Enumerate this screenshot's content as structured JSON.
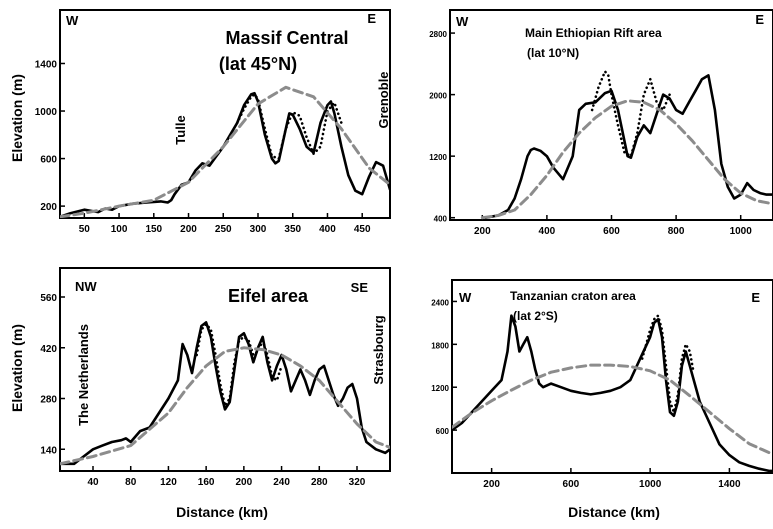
{
  "figure": {
    "ylabel": "Elevation   (m)",
    "xlabel": "Distance  (km)"
  },
  "chart_data": [
    {
      "type": "line",
      "title": "Massif Central",
      "subtitle": "(lat 45°N)",
      "corner_left": "W",
      "corner_right": "E",
      "annotations": [
        {
          "text": "Tulle",
          "x": 185
        },
        {
          "text": "Grenoble",
          "x": 470
        }
      ],
      "xlim": [
        15,
        490
      ],
      "ylim": [
        100,
        1850
      ],
      "xticks": [
        50,
        100,
        150,
        200,
        250,
        300,
        350,
        400,
        450
      ],
      "yticks": [
        200,
        600,
        1000,
        1400
      ],
      "series": [
        {
          "style": "solid",
          "x": [
            15,
            30,
            50,
            70,
            80,
            90,
            100,
            120,
            140,
            160,
            170,
            175,
            180,
            190,
            200,
            210,
            220,
            230,
            240,
            250,
            260,
            270,
            280,
            290,
            295,
            300,
            310,
            320,
            325,
            330,
            340,
            345,
            350,
            360,
            370,
            380,
            390,
            400,
            405,
            410,
            420,
            430,
            440,
            450,
            460,
            470,
            480,
            490
          ],
          "y": [
            110,
            140,
            170,
            150,
            180,
            170,
            200,
            220,
            230,
            240,
            230,
            250,
            300,
            380,
            400,
            500,
            560,
            540,
            620,
            700,
            800,
            900,
            1050,
            1140,
            1150,
            1080,
            800,
            600,
            560,
            580,
            850,
            980,
            970,
            850,
            700,
            650,
            900,
            1050,
            1080,
            980,
            700,
            460,
            330,
            300,
            450,
            570,
            540,
            340
          ]
        },
        {
          "style": "dotted",
          "x": [
            270,
            280,
            290,
            295,
            300,
            310,
            320,
            330,
            340,
            350,
            360,
            370,
            380,
            390,
            400,
            410,
            420
          ],
          "y": [
            900,
            1020,
            1120,
            1140,
            1100,
            850,
            620,
            600,
            850,
            990,
            960,
            780,
            640,
            700,
            1000,
            1070,
            900
          ]
        },
        {
          "style": "dashed",
          "x": [
            15,
            50,
            100,
            150,
            200,
            250,
            300,
            340,
            380,
            420,
            460,
            490
          ],
          "y": [
            110,
            140,
            200,
            250,
            400,
            700,
            1060,
            1200,
            1120,
            850,
            520,
            380
          ]
        }
      ]
    },
    {
      "type": "line",
      "title": "Main Ethiopian Rift area",
      "subtitle": "(lat 10°N)",
      "corner_left": "W",
      "corner_right": "E",
      "annotations": [],
      "xlim": [
        100,
        1100
      ],
      "ylim": [
        370,
        3100
      ],
      "xticks": [
        200,
        400,
        600,
        800,
        1000
      ],
      "yticks": [
        400,
        1200,
        2000,
        2800
      ],
      "series": [
        {
          "style": "solid",
          "x": [
            210,
            250,
            280,
            300,
            320,
            340,
            350,
            360,
            380,
            400,
            420,
            450,
            480,
            500,
            520,
            550,
            580,
            600,
            620,
            640,
            650,
            660,
            680,
            700,
            720,
            740,
            760,
            780,
            800,
            820,
            840,
            860,
            880,
            900,
            920,
            940,
            960,
            980,
            1000,
            1020,
            1040,
            1060,
            1080,
            1100
          ],
          "y": [
            400,
            430,
            500,
            650,
            900,
            1200,
            1280,
            1300,
            1270,
            1200,
            1050,
            900,
            1200,
            1800,
            1880,
            1900,
            2020,
            2050,
            1800,
            1400,
            1200,
            1180,
            1450,
            1600,
            1500,
            1750,
            2000,
            1950,
            1800,
            1750,
            1900,
            2050,
            2200,
            2250,
            1800,
            1100,
            800,
            650,
            700,
            850,
            760,
            720,
            700,
            700
          ]
        },
        {
          "style": "dotted",
          "x": [
            540,
            560,
            580,
            590,
            600,
            610,
            620,
            640,
            660,
            680,
            700,
            720,
            740,
            760,
            780
          ],
          "y": [
            1800,
            2100,
            2300,
            2250,
            2000,
            1800,
            1600,
            1250,
            1200,
            1500,
            2000,
            2200,
            1900,
            1800,
            2000
          ]
        },
        {
          "style": "dashed",
          "x": [
            200,
            250,
            300,
            350,
            400,
            450,
            500,
            550,
            600,
            650,
            700,
            750,
            800,
            850,
            900,
            950,
            1000,
            1050,
            1100
          ],
          "y": [
            400,
            430,
            500,
            700,
            950,
            1250,
            1500,
            1700,
            1850,
            1920,
            1900,
            1800,
            1620,
            1400,
            1150,
            900,
            720,
            620,
            580
          ]
        }
      ]
    },
    {
      "type": "line",
      "title": "Eifel area",
      "subtitle": "",
      "corner_left": "NW",
      "corner_right": "SE",
      "annotations": [
        {
          "text": "The Netherlands",
          "x": 20
        },
        {
          "text": "Strasbourg",
          "x": 340
        }
      ],
      "xlim": [
        5,
        355
      ],
      "ylim": [
        80,
        640
      ],
      "xticks": [
        40,
        80,
        120,
        160,
        200,
        240,
        280,
        320
      ],
      "yticks": [
        140,
        280,
        420,
        560
      ],
      "series": [
        {
          "style": "solid",
          "x": [
            5,
            20,
            30,
            40,
            50,
            60,
            70,
            75,
            80,
            90,
            100,
            110,
            120,
            130,
            135,
            140,
            145,
            150,
            155,
            160,
            165,
            170,
            175,
            180,
            185,
            190,
            195,
            200,
            205,
            210,
            215,
            220,
            225,
            230,
            235,
            240,
            245,
            250,
            255,
            260,
            265,
            270,
            275,
            280,
            285,
            290,
            295,
            300,
            305,
            310,
            315,
            320,
            325,
            330,
            340,
            350,
            355
          ],
          "y": [
            100,
            100,
            120,
            140,
            150,
            160,
            165,
            170,
            160,
            190,
            200,
            240,
            280,
            330,
            430,
            400,
            350,
            420,
            480,
            490,
            450,
            370,
            300,
            250,
            270,
            360,
            450,
            460,
            430,
            380,
            420,
            450,
            380,
            330,
            370,
            400,
            360,
            300,
            330,
            360,
            330,
            290,
            330,
            360,
            370,
            330,
            290,
            260,
            280,
            310,
            320,
            280,
            200,
            160,
            140,
            130,
            140
          ]
        },
        {
          "style": "dotted",
          "x": [
            150,
            155,
            160,
            165,
            170,
            175,
            180,
            185,
            190,
            195,
            200,
            205,
            210,
            215,
            220,
            225,
            230,
            235,
            240
          ],
          "y": [
            400,
            470,
            485,
            470,
            400,
            320,
            260,
            280,
            380,
            440,
            450,
            440,
            400,
            410,
            440,
            400,
            340,
            330,
            370
          ]
        },
        {
          "style": "dashed",
          "x": [
            5,
            40,
            80,
            120,
            140,
            160,
            180,
            200,
            220,
            240,
            260,
            280,
            300,
            320,
            340,
            355
          ],
          "y": [
            100,
            120,
            150,
            240,
            310,
            370,
            410,
            420,
            415,
            400,
            370,
            330,
            270,
            210,
            160,
            145
          ]
        }
      ]
    },
    {
      "type": "line",
      "title": "Tanzanian craton area",
      "subtitle": "(lat 2°S)",
      "corner_left": "W",
      "corner_right": "E",
      "annotations": [],
      "xlim": [
        0,
        1620
      ],
      "ylim": [
        0,
        2700
      ],
      "xticks": [
        200,
        600,
        1000,
        1400
      ],
      "yticks": [
        600,
        1200,
        1800,
        2400
      ],
      "series": [
        {
          "style": "solid",
          "x": [
            0,
            50,
            100,
            150,
            200,
            250,
            280,
            300,
            320,
            340,
            360,
            380,
            400,
            420,
            440,
            460,
            500,
            550,
            600,
            650,
            700,
            750,
            800,
            850,
            900,
            950,
            1000,
            1020,
            1040,
            1060,
            1080,
            1100,
            1120,
            1140,
            1160,
            1180,
            1200,
            1250,
            1300,
            1350,
            1400,
            1450,
            1500,
            1550,
            1600,
            1620
          ],
          "y": [
            600,
            700,
            850,
            1000,
            1150,
            1300,
            1700,
            2200,
            2050,
            1700,
            1800,
            1900,
            1700,
            1450,
            1250,
            1200,
            1250,
            1200,
            1150,
            1120,
            1100,
            1120,
            1150,
            1200,
            1300,
            1600,
            1900,
            2100,
            2150,
            1900,
            1300,
            850,
            800,
            1000,
            1500,
            1700,
            1500,
            1000,
            700,
            400,
            250,
            150,
            100,
            60,
            30,
            30
          ]
        },
        {
          "style": "dotted",
          "x": [
            960,
            980,
            1000,
            1020,
            1040,
            1060,
            1080,
            1100,
            1120,
            1140,
            1160,
            1180,
            1200,
            1220
          ],
          "y": [
            1600,
            1800,
            2000,
            2150,
            2200,
            2000,
            1500,
            1000,
            850,
            1100,
            1600,
            1800,
            1700,
            1400
          ]
        },
        {
          "style": "dashed",
          "x": [
            0,
            100,
            200,
            300,
            400,
            500,
            600,
            700,
            800,
            900,
            1000,
            1100,
            1200,
            1300,
            1400,
            1500,
            1620
          ],
          "y": [
            640,
            840,
            1010,
            1160,
            1300,
            1410,
            1470,
            1510,
            1510,
            1490,
            1430,
            1300,
            1080,
            850,
            620,
            410,
            260
          ]
        }
      ]
    }
  ]
}
